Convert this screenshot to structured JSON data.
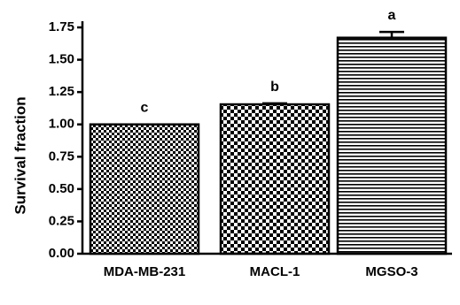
{
  "chart_data": {
    "type": "bar",
    "title": "",
    "xlabel": "",
    "ylabel": "Survival fraction",
    "ylim": [
      0,
      1.75
    ],
    "yticks": [
      "0.00",
      "0.25",
      "0.50",
      "0.75",
      "1.00",
      "1.25",
      "1.50",
      "1.75"
    ],
    "categories": [
      "MDA-MB-231",
      "MACL-1",
      "MGSO-3"
    ],
    "values": [
      1.0,
      1.155,
      1.67
    ],
    "errors": [
      0.0,
      0.008,
      0.045
    ],
    "significance_labels": [
      "c",
      "b",
      "a"
    ],
    "fill_patterns": [
      "fine-checker",
      "coarse-checker",
      "horizontal-stripes"
    ],
    "grid": false,
    "legend": "none"
  }
}
